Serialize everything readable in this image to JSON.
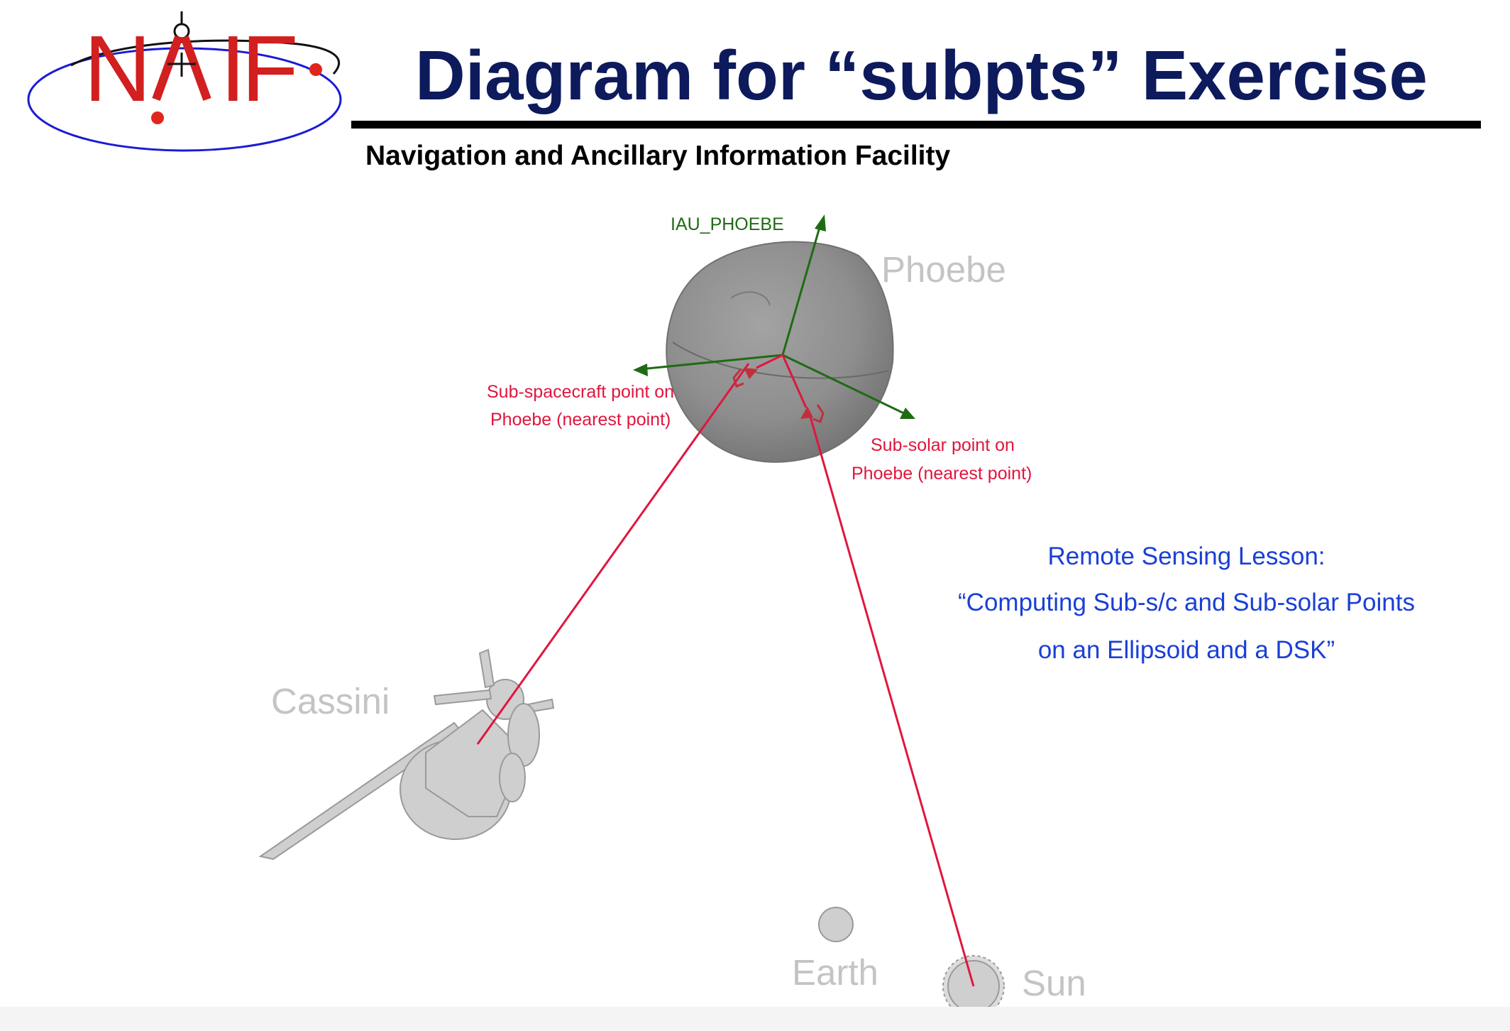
{
  "header": {
    "title": "Diagram for “subpts” Exercise",
    "subtitle": "Navigation and Ancillary Information Facility",
    "logo": {
      "letters": [
        "N",
        "A",
        "I",
        "F"
      ],
      "accent_color": "#d21f1f",
      "orbit_color": "#1a1ad6"
    },
    "rule_color": "#000000",
    "title_color": "#0d1a5c"
  },
  "diagram": {
    "bodies": {
      "phoebe": "Phoebe",
      "cassini": "Cassini",
      "earth": "Earth",
      "sun": "Sun"
    },
    "frame": {
      "name": "IAU_PHOEBE",
      "color": "#1f6b14"
    },
    "points": {
      "color": "#e0163e",
      "sub_spacecraft": {
        "line1": "Sub-spacecraft point on",
        "line2": "Phoebe (nearest point)"
      },
      "sub_solar": {
        "line1": "Sub-solar point on",
        "line2": "Phoebe (nearest point)"
      }
    },
    "lesson": {
      "color": "#1a3fd6",
      "line1": "Remote Sensing Lesson:",
      "line2": "“Computing Sub-s/c and Sub-solar Points",
      "line3": "on an Ellipsoid and a DSK”"
    }
  }
}
